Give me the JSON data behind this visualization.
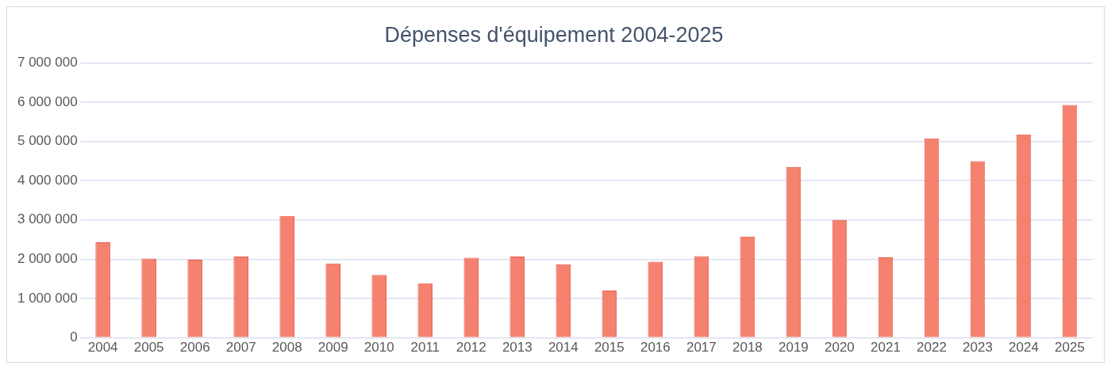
{
  "chart_data": {
    "type": "bar",
    "title": "Dépenses d'équipement 2004-2025",
    "categories": [
      "2004",
      "2005",
      "2006",
      "2007",
      "2008",
      "2009",
      "2010",
      "2011",
      "2012",
      "2013",
      "2014",
      "2015",
      "2016",
      "2017",
      "2018",
      "2019",
      "2020",
      "2021",
      "2022",
      "2023",
      "2024",
      "2025"
    ],
    "values": [
      2430000,
      2020000,
      1990000,
      2070000,
      3100000,
      1890000,
      1600000,
      1390000,
      2040000,
      2070000,
      1870000,
      1200000,
      1940000,
      2080000,
      2580000,
      4350000,
      3000000,
      2050000,
      5080000,
      4500000,
      5180000,
      5930000
    ],
    "color": "#f4826f",
    "ylim": [
      0,
      7000000
    ],
    "yticks": [
      {
        "value": 0,
        "label": "0"
      },
      {
        "value": 1000000,
        "label": "1 000 000"
      },
      {
        "value": 2000000,
        "label": "2 000 000"
      },
      {
        "value": 3000000,
        "label": "3 000 000"
      },
      {
        "value": 4000000,
        "label": "4 000 000"
      },
      {
        "value": 5000000,
        "label": "5 000 000"
      },
      {
        "value": 6000000,
        "label": "6 000 000"
      },
      {
        "value": 7000000,
        "label": "7 000 000"
      }
    ],
    "grid": "y",
    "legend": false
  }
}
